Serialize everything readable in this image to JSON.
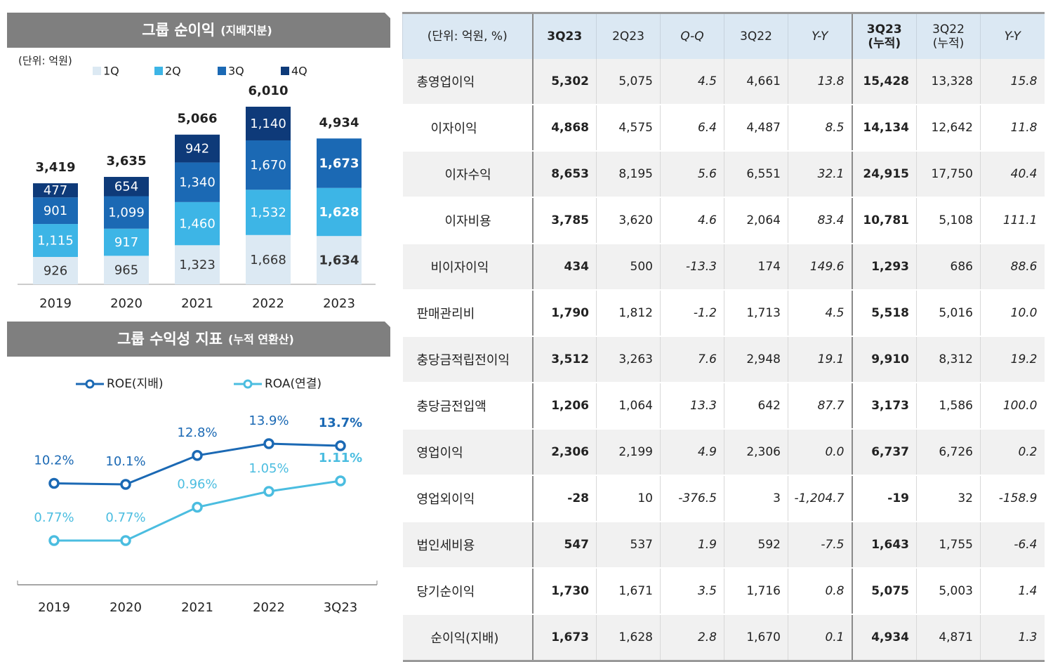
{
  "chart_data": [
    {
      "type": "stacked-bar",
      "title": "그룹 순이익",
      "subtitle": "(지배지분)",
      "unit": "(단위: 억원)",
      "categories": [
        "2019",
        "2020",
        "2021",
        "2022",
        "2023"
      ],
      "series": [
        {
          "name": "1Q",
          "color": "#dce9f3",
          "values": [
            926,
            965,
            1323,
            1668,
            1634
          ],
          "value_labels": [
            "926",
            "965",
            "1,323",
            "1,668",
            "1,634"
          ]
        },
        {
          "name": "2Q",
          "color": "#3db5e6",
          "values": [
            1115,
            917,
            1460,
            1532,
            1628
          ],
          "value_labels": [
            "1,115",
            "917",
            "1,460",
            "1,532",
            "1,628"
          ]
        },
        {
          "name": "3Q",
          "color": "#1b69b4",
          "values": [
            901,
            1099,
            1340,
            1670,
            1673
          ],
          "value_labels": [
            "901",
            "1,099",
            "1,340",
            "1,670",
            "1,673"
          ]
        },
        {
          "name": "4Q",
          "color": "#0e3a79",
          "values": [
            477,
            654,
            942,
            1140,
            null
          ],
          "value_labels": [
            "477",
            "654",
            "942",
            "1,140",
            null
          ]
        }
      ],
      "totals": {
        "values": [
          3419,
          3635,
          5066,
          6010,
          4934
        ],
        "value_labels": [
          "3,419",
          "3,635",
          "5,066",
          "6,010",
          "4,934"
        ]
      }
    },
    {
      "type": "line",
      "title": "그룹 수익성 지표",
      "subtitle": "(누적 연환산)",
      "categories": [
        "2019",
        "2020",
        "2021",
        "2022",
        "3Q23"
      ],
      "series": [
        {
          "name": "ROE(지배)",
          "color": "#1b69b4",
          "values": [
            10.2,
            10.1,
            12.8,
            13.9,
            13.7
          ],
          "value_labels": [
            "10.2%",
            "10.1%",
            "12.8%",
            "13.9%",
            "13.7%"
          ]
        },
        {
          "name": "ROA(연결)",
          "color": "#4bbde0",
          "axis": "y2",
          "values": [
            0.77,
            0.77,
            0.96,
            1.05,
            1.11
          ],
          "value_labels": [
            "0.77%",
            "0.77%",
            "0.96%",
            "1.05%",
            "1.11%"
          ]
        }
      ]
    }
  ],
  "table": {
    "header": [
      "(단위: 억원, %)",
      "3Q23",
      "2Q23",
      "Q-Q",
      "3Q22",
      "Y-Y",
      [
        "3Q23",
        "(누적)"
      ],
      [
        "3Q22",
        "(누적)"
      ],
      "Y-Y"
    ],
    "rows": [
      {
        "label": "총영업이익",
        "cells": [
          "5,302",
          "5,075",
          "4.5",
          "4,661",
          "13.8",
          "15,428",
          "13,328",
          "15.8"
        ]
      },
      {
        "label": "이자이익",
        "cells": [
          "4,868",
          "4,575",
          "6.4",
          "4,487",
          "8.5",
          "14,134",
          "12,642",
          "11.8"
        ]
      },
      {
        "label": "이자수익",
        "cells": [
          "8,653",
          "8,195",
          "5.6",
          "6,551",
          "32.1",
          "24,915",
          "17,750",
          "40.4"
        ]
      },
      {
        "label": "이자비용",
        "cells": [
          "3,785",
          "3,620",
          "4.6",
          "2,064",
          "83.4",
          "10,781",
          "5,108",
          "111.1"
        ]
      },
      {
        "label": "비이자이익",
        "cells": [
          "434",
          "500",
          "-13.3",
          "174",
          "149.6",
          "1,293",
          "686",
          "88.6"
        ]
      },
      {
        "label": "판매관리비",
        "cells": [
          "1,790",
          "1,812",
          "-1.2",
          "1,713",
          "4.5",
          "5,518",
          "5,016",
          "10.0"
        ]
      },
      {
        "label": "충당금적립전이익",
        "cells": [
          "3,512",
          "3,263",
          "7.6",
          "2,948",
          "19.1",
          "9,910",
          "8,312",
          "19.2"
        ]
      },
      {
        "label": "충당금전입액",
        "cells": [
          "1,206",
          "1,064",
          "13.3",
          "642",
          "87.7",
          "3,173",
          "1,586",
          "100.0"
        ]
      },
      {
        "label": "영업이익",
        "cells": [
          "2,306",
          "2,199",
          "4.9",
          "2,306",
          "0.0",
          "6,737",
          "6,726",
          "0.2"
        ]
      },
      {
        "label": "영업외이익",
        "cells": [
          "-28",
          "10",
          "-376.5",
          "3",
          "-1,204.7",
          "-19",
          "32",
          "-158.9"
        ]
      },
      {
        "label": "법인세비용",
        "cells": [
          "547",
          "537",
          "1.9",
          "592",
          "-7.5",
          "1,643",
          "1,755",
          "-6.4"
        ]
      },
      {
        "label": "당기순이익",
        "cells": [
          "1,730",
          "1,671",
          "3.5",
          "1,716",
          "0.8",
          "5,075",
          "5,003",
          "1.4"
        ]
      },
      {
        "label": "순이익(지배)",
        "cells": [
          "1,673",
          "1,628",
          "2.8",
          "1,670",
          "0.1",
          "4,934",
          "4,871",
          "1.3"
        ]
      }
    ]
  }
}
